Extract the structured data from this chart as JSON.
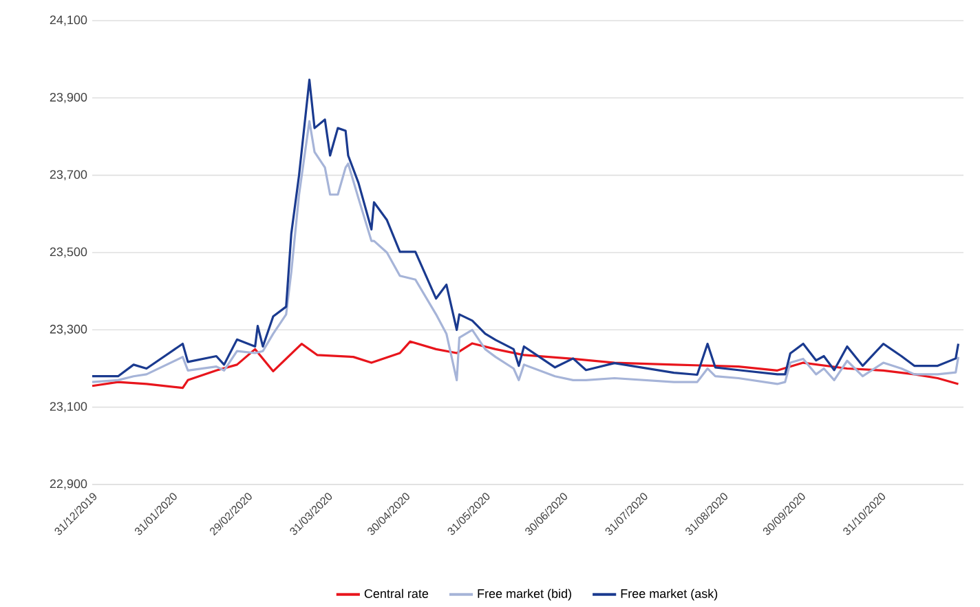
{
  "chart_data": {
    "type": "line",
    "grid": "y",
    "legend": "bottom",
    "line_style": "solid",
    "marker": "none",
    "xlim": [
      "2019-12-31",
      "2020-12-02"
    ],
    "ylim": [
      22900,
      24100
    ],
    "yticks": [
      {
        "value": 22900,
        "label": "22,900"
      },
      {
        "value": 23100,
        "label": "23,100"
      },
      {
        "value": 23300,
        "label": "23,300"
      },
      {
        "value": 23500,
        "label": "23,500"
      },
      {
        "value": 23700,
        "label": "23,700"
      },
      {
        "value": 23900,
        "label": "23,900"
      },
      {
        "value": 24100,
        "label": "24,100"
      }
    ],
    "xticks": [
      {
        "value": "2019-12-31",
        "label": "31/12/2019"
      },
      {
        "value": "2020-01-31",
        "label": "31/01/2020"
      },
      {
        "value": "2020-02-29",
        "label": "29/02/2020"
      },
      {
        "value": "2020-03-31",
        "label": "31/03/2020"
      },
      {
        "value": "2020-04-30",
        "label": "30/04/2020"
      },
      {
        "value": "2020-05-31",
        "label": "31/05/2020"
      },
      {
        "value": "2020-06-30",
        "label": "30/06/2020"
      },
      {
        "value": "2020-07-31",
        "label": "31/07/2020"
      },
      {
        "value": "2020-08-31",
        "label": "31/08/2020"
      },
      {
        "value": "2020-09-30",
        "label": "30/09/2020"
      },
      {
        "value": "2020-10-31",
        "label": "31/10/2020"
      }
    ],
    "series": [
      {
        "name": "Central rate",
        "color": "#e8151c",
        "x": [
          "2019-12-31",
          "2020-01-10",
          "2020-01-21",
          "2020-02-04",
          "2020-02-06",
          "2020-02-17",
          "2020-02-25",
          "2020-03-03",
          "2020-03-10",
          "2020-03-21",
          "2020-03-27",
          "2020-04-10",
          "2020-04-17",
          "2020-04-28",
          "2020-05-02",
          "2020-05-12",
          "2020-05-20",
          "2020-05-26",
          "2020-06-04",
          "2020-06-15",
          "2020-07-04",
          "2020-07-20",
          "2020-08-12",
          "2020-09-06",
          "2020-09-21",
          "2020-10-01",
          "2020-10-18",
          "2020-11-01",
          "2020-11-13",
          "2020-11-22",
          "2020-11-30"
        ],
        "values": [
          23155,
          23165,
          23160,
          23150,
          23170,
          23195,
          23210,
          23250,
          23193,
          23264,
          23235,
          23230,
          23215,
          23240,
          23270,
          23250,
          23240,
          23265,
          23250,
          23235,
          23225,
          23215,
          23210,
          23205,
          23195,
          23215,
          23200,
          23195,
          23185,
          23175,
          23160
        ]
      },
      {
        "name": "Free market (bid)",
        "color": "#a6b4d8",
        "x": [
          "2019-12-31",
          "2020-01-10",
          "2020-01-16",
          "2020-01-21",
          "2020-02-04",
          "2020-02-06",
          "2020-02-17",
          "2020-02-20",
          "2020-02-25",
          "2020-03-03",
          "2020-03-06",
          "2020-03-10",
          "2020-03-15",
          "2020-03-17",
          "2020-03-20",
          "2020-03-24",
          "2020-03-26",
          "2020-03-30",
          "2020-04-01",
          "2020-04-04",
          "2020-04-07",
          "2020-04-08",
          "2020-04-12",
          "2020-04-17",
          "2020-04-18",
          "2020-04-23",
          "2020-04-28",
          "2020-05-04",
          "2020-05-12",
          "2020-05-16",
          "2020-05-20",
          "2020-05-21",
          "2020-05-26",
          "2020-05-31",
          "2020-06-04",
          "2020-06-11",
          "2020-06-13",
          "2020-06-15",
          "2020-06-27",
          "2020-07-04",
          "2020-07-09",
          "2020-07-20",
          "2020-08-12",
          "2020-08-21",
          "2020-08-25",
          "2020-08-28",
          "2020-09-06",
          "2020-09-21",
          "2020-09-24",
          "2020-09-26",
          "2020-10-01",
          "2020-10-06",
          "2020-10-09",
          "2020-10-13",
          "2020-10-18",
          "2020-10-24",
          "2020-11-01",
          "2020-11-08",
          "2020-11-13",
          "2020-11-22",
          "2020-11-29",
          "2020-11-30"
        ],
        "values": [
          23165,
          23170,
          23180,
          23185,
          23230,
          23195,
          23205,
          23195,
          23245,
          23240,
          23245,
          23290,
          23340,
          23450,
          23650,
          23840,
          23760,
          23720,
          23650,
          23650,
          23720,
          23730,
          23640,
          23530,
          23530,
          23500,
          23440,
          23430,
          23340,
          23290,
          23170,
          23280,
          23300,
          23250,
          23230,
          23200,
          23170,
          23210,
          23180,
          23170,
          23170,
          23175,
          23165,
          23165,
          23200,
          23180,
          23175,
          23160,
          23165,
          23215,
          23225,
          23185,
          23200,
          23170,
          23220,
          23180,
          23215,
          23200,
          23185,
          23185,
          23190,
          23230
        ]
      },
      {
        "name": "Free market (ask)",
        "color": "#1a3a8f",
        "x": [
          "2019-12-31",
          "2020-01-10",
          "2020-01-16",
          "2020-01-21",
          "2020-02-04",
          "2020-02-06",
          "2020-02-17",
          "2020-02-20",
          "2020-02-25",
          "2020-03-03",
          "2020-03-04",
          "2020-03-06",
          "2020-03-10",
          "2020-03-15",
          "2020-03-17",
          "2020-03-20",
          "2020-03-24",
          "2020-03-26",
          "2020-03-30",
          "2020-04-01",
          "2020-04-04",
          "2020-04-07",
          "2020-04-08",
          "2020-04-12",
          "2020-04-17",
          "2020-04-18",
          "2020-04-23",
          "2020-04-28",
          "2020-05-04",
          "2020-05-12",
          "2020-05-16",
          "2020-05-20",
          "2020-05-21",
          "2020-05-26",
          "2020-05-31",
          "2020-06-04",
          "2020-06-11",
          "2020-06-13",
          "2020-06-15",
          "2020-06-27",
          "2020-07-04",
          "2020-07-09",
          "2020-07-20",
          "2020-08-12",
          "2020-08-21",
          "2020-08-25",
          "2020-08-28",
          "2020-09-06",
          "2020-09-21",
          "2020-09-24",
          "2020-09-26",
          "2020-10-01",
          "2020-10-06",
          "2020-10-09",
          "2020-10-13",
          "2020-10-18",
          "2020-10-24",
          "2020-11-01",
          "2020-11-08",
          "2020-11-13",
          "2020-11-22",
          "2020-11-29",
          "2020-11-30"
        ],
        "values": [
          23180,
          23180,
          23210,
          23200,
          23264,
          23217,
          23232,
          23210,
          23275,
          23257,
          23310,
          23257,
          23335,
          23360,
          23549,
          23700,
          23947,
          23822,
          23844,
          23751,
          23822,
          23815,
          23751,
          23680,
          23560,
          23630,
          23584,
          23502,
          23502,
          23381,
          23417,
          23300,
          23340,
          23324,
          23290,
          23274,
          23250,
          23207,
          23257,
          23203,
          23226,
          23196,
          23214,
          23189,
          23184,
          23264,
          23203,
          23196,
          23185,
          23185,
          23239,
          23264,
          23221,
          23232,
          23196,
          23257,
          23207,
          23264,
          23232,
          23207,
          23207,
          23226,
          23264
        ]
      }
    ]
  }
}
